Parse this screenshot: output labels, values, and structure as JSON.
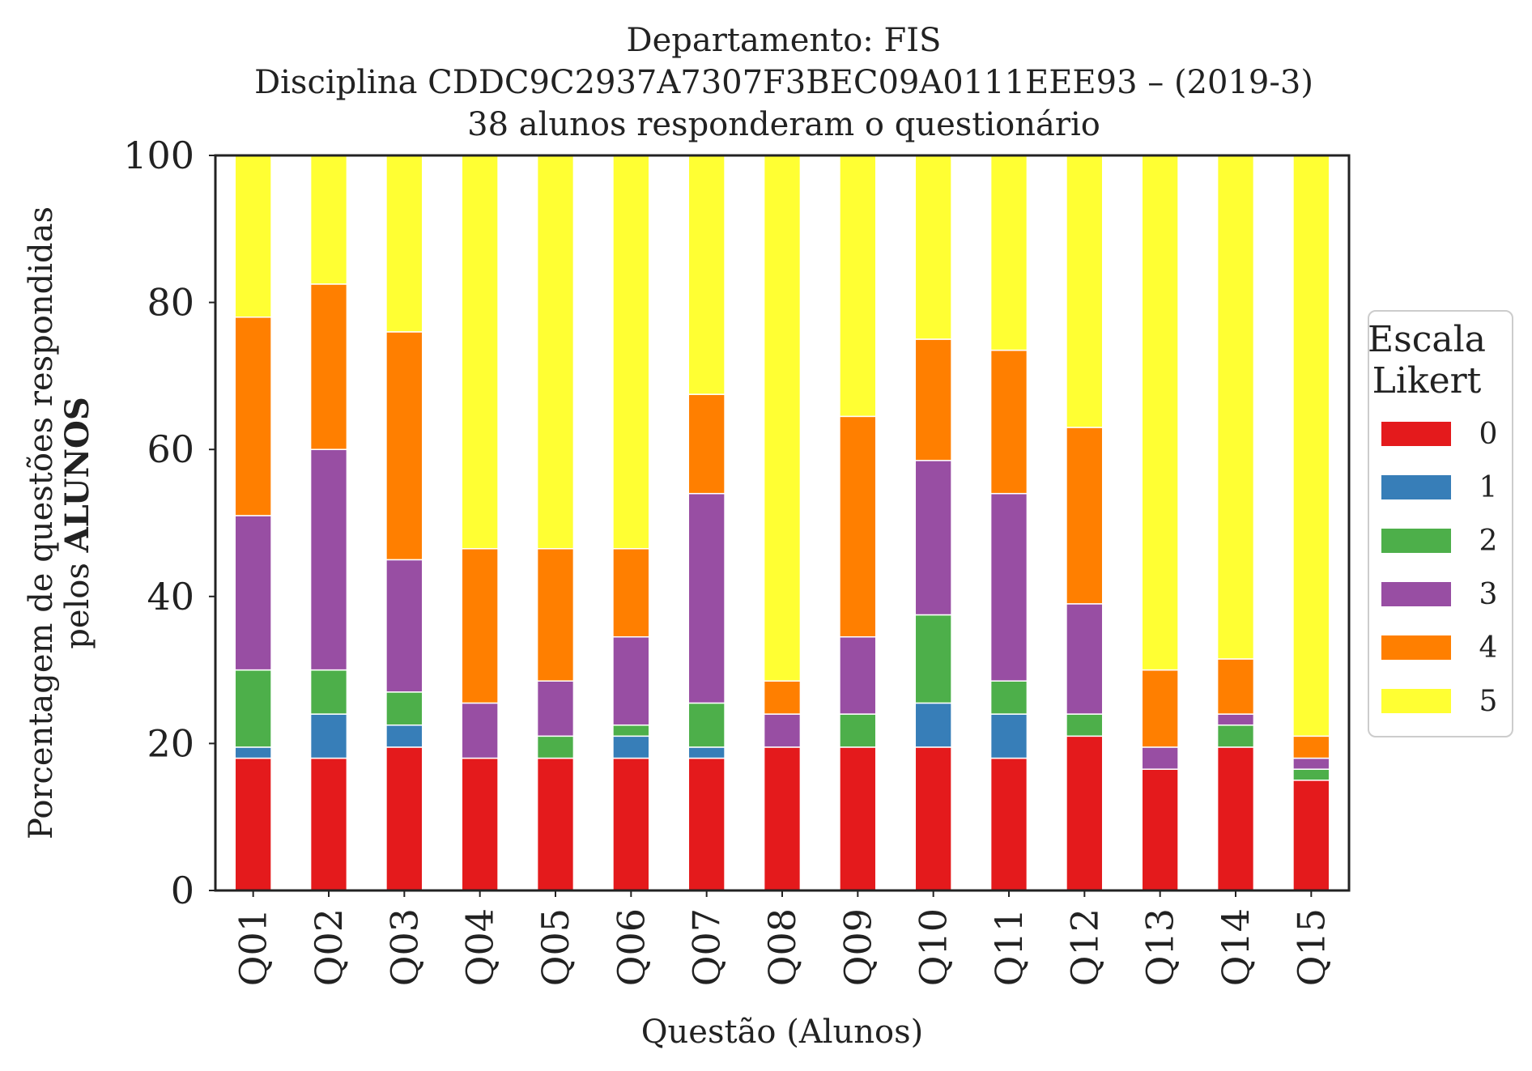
{
  "chart_data": {
    "type": "bar",
    "stacked": true,
    "title_lines": [
      "Departamento: FIS",
      "Disciplina CDDC9C2937A7307F3BEC09A0111EEE93 – (2019-3)",
      "38 alunos responderam o questionário"
    ],
    "xlabel": "Questão (Alunos)",
    "ylabel_lines": [
      "Porcentagem de questões respondidas",
      "pelos ",
      "ALUNOS"
    ],
    "ylim": [
      0,
      100
    ],
    "yticks": [
      0,
      20,
      40,
      60,
      80,
      100
    ],
    "grid": false,
    "legend": {
      "title_lines": [
        "Escala",
        "Likert"
      ],
      "placement": "right"
    },
    "categories": [
      "Q01",
      "Q02",
      "Q03",
      "Q04",
      "Q05",
      "Q06",
      "Q07",
      "Q08",
      "Q09",
      "Q10",
      "Q11",
      "Q12",
      "Q13",
      "Q14",
      "Q15"
    ],
    "series": [
      {
        "name": "0",
        "color": "#e41a1c",
        "values": [
          18,
          18,
          19.5,
          18,
          18,
          18,
          18,
          19.5,
          19.5,
          19.5,
          18,
          21,
          16.5,
          19.5,
          15
        ]
      },
      {
        "name": "1",
        "color": "#377eb8",
        "values": [
          1.5,
          6,
          3,
          0,
          0,
          3,
          1.5,
          0,
          0,
          6,
          6,
          0,
          0,
          0,
          0
        ]
      },
      {
        "name": "2",
        "color": "#4daf4a",
        "values": [
          10.5,
          6,
          4.5,
          0,
          3,
          1.5,
          6,
          0,
          4.5,
          12,
          4.5,
          3,
          0,
          3,
          1.5
        ]
      },
      {
        "name": "3",
        "color": "#984ea3",
        "values": [
          21,
          30,
          18,
          7.5,
          7.5,
          12,
          28.5,
          4.5,
          10.5,
          21,
          25.5,
          15,
          3,
          1.5,
          1.5
        ]
      },
      {
        "name": "4",
        "color": "#ff7f00",
        "values": [
          27,
          22.5,
          31,
          21,
          18,
          12,
          13.5,
          4.5,
          30,
          16.5,
          19.5,
          24,
          10.5,
          7.5,
          3
        ]
      },
      {
        "name": "5",
        "color": "#ffff33",
        "values": [
          22,
          17.5,
          24,
          53.5,
          53.5,
          53.5,
          32.5,
          71.5,
          35.5,
          25,
          26.5,
          37,
          70,
          68.5,
          79
        ]
      }
    ]
  }
}
